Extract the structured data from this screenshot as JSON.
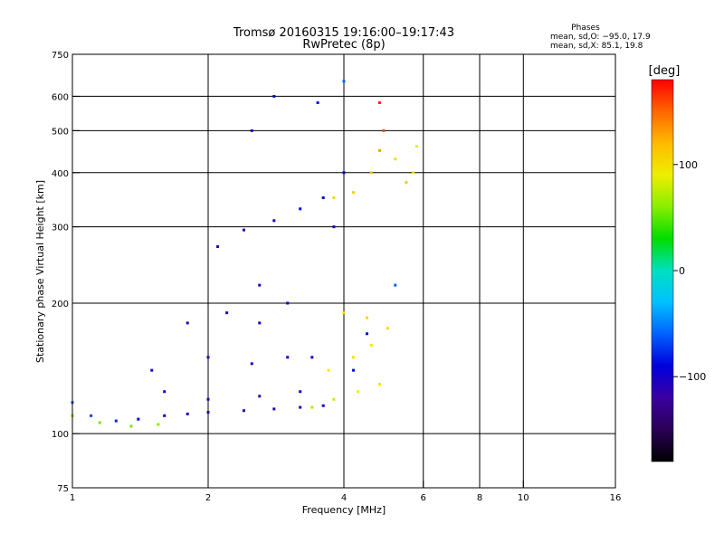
{
  "chart_data": {
    "type": "scatter",
    "title": "Tromsø 20160315 19:16:00–19:17:43",
    "subtitle": "RwPretec (8p)",
    "xlabel": "Frequency [MHz]",
    "ylabel": "Stationary phase Virtual Height [km]",
    "x_scale": "log",
    "y_scale": "log",
    "xlim": [
      1,
      16
    ],
    "ylim": [
      75,
      750
    ],
    "x_ticks": [
      1,
      2,
      4,
      6,
      8,
      10,
      16
    ],
    "x_tick_labels": [
      "1",
      "2",
      "4",
      "6",
      "8",
      "10",
      "16"
    ],
    "y_ticks": [
      75,
      100,
      200,
      300,
      400,
      500,
      600,
      750
    ],
    "y_tick_labels": [
      "75",
      "100",
      "200",
      "300",
      "400",
      "500",
      "600",
      "750"
    ],
    "grid_x": [
      2,
      4,
      6,
      8,
      10
    ],
    "grid_y": [
      100,
      200,
      300,
      400,
      500,
      600
    ],
    "grid": true,
    "stats": {
      "heading": "Phases",
      "lines": [
        "mean, sd,O: −95.0, 17.9",
        "mean, sd,X:  85.1, 19.8"
      ]
    },
    "colorbar": {
      "label": "[deg]",
      "range": [
        -180,
        180
      ],
      "ticks": [
        100,
        0,
        -100
      ],
      "tick_labels": [
        "100",
        "0",
        "−100"
      ]
    },
    "series": [
      {
        "mode": "O",
        "points": [
          [
            1.0,
            118,
            -60
          ],
          [
            1.1,
            110,
            -70
          ],
          [
            1.25,
            107,
            -80
          ],
          [
            1.4,
            108,
            -90
          ],
          [
            1.6,
            110,
            -100
          ],
          [
            1.8,
            111,
            -105
          ],
          [
            2.0,
            112,
            -110
          ],
          [
            2.4,
            113,
            -115
          ],
          [
            2.8,
            114,
            -110
          ],
          [
            3.2,
            115,
            -100
          ],
          [
            3.6,
            116,
            -90
          ],
          [
            1.6,
            125,
            -100
          ],
          [
            2.0,
            120,
            -110
          ],
          [
            2.6,
            122,
            -105
          ],
          [
            3.2,
            125,
            -100
          ],
          [
            1.5,
            140,
            -105
          ],
          [
            2.0,
            150,
            -110
          ],
          [
            2.5,
            145,
            -105
          ],
          [
            3.0,
            150,
            -95
          ],
          [
            1.8,
            180,
            -110
          ],
          [
            2.2,
            190,
            -105
          ],
          [
            2.6,
            180,
            -100
          ],
          [
            3.0,
            200,
            -95
          ],
          [
            2.4,
            295,
            -110
          ],
          [
            2.8,
            310,
            -100
          ],
          [
            3.2,
            330,
            -95
          ],
          [
            3.6,
            350,
            -90
          ],
          [
            2.5,
            500,
            -100
          ],
          [
            2.8,
            600,
            -90
          ],
          [
            3.5,
            580,
            -85
          ],
          [
            4.0,
            650,
            -60
          ],
          [
            4.0,
            400,
            -90
          ],
          [
            3.8,
            300,
            -105
          ],
          [
            2.6,
            220,
            -100
          ],
          [
            2.1,
            270,
            -110
          ],
          [
            3.4,
            150,
            -95
          ],
          [
            4.2,
            140,
            -90
          ],
          [
            4.5,
            170,
            -85
          ],
          [
            5.2,
            220,
            -60
          ]
        ]
      },
      {
        "mode": "X",
        "points": [
          [
            1.0,
            110,
            60
          ],
          [
            1.15,
            106,
            55
          ],
          [
            1.35,
            104,
            55
          ],
          [
            1.55,
            105,
            60
          ],
          [
            3.4,
            115,
            70
          ],
          [
            3.8,
            120,
            80
          ],
          [
            4.3,
            125,
            90
          ],
          [
            4.8,
            130,
            95
          ],
          [
            3.7,
            140,
            90
          ],
          [
            4.2,
            150,
            95
          ],
          [
            4.6,
            160,
            95
          ],
          [
            5.0,
            175,
            100
          ],
          [
            4.0,
            190,
            100
          ],
          [
            4.5,
            185,
            105
          ],
          [
            3.8,
            350,
            100
          ],
          [
            4.2,
            360,
            110
          ],
          [
            4.6,
            400,
            115
          ],
          [
            4.8,
            450,
            130
          ],
          [
            4.9,
            500,
            160
          ],
          [
            4.8,
            580,
            170
          ],
          [
            5.5,
            380,
            110
          ],
          [
            5.7,
            400,
            95
          ],
          [
            5.2,
            430,
            100
          ],
          [
            5.8,
            460,
            90
          ]
        ]
      }
    ]
  },
  "colors": {
    "frame": "#000000",
    "background": "#ffffff",
    "colormap": [
      "#000000",
      "#2a0055",
      "#3b00a0",
      "#0000dd",
      "#0060ff",
      "#00c0ff",
      "#00e0c0",
      "#00dd00",
      "#88ee00",
      "#eeee00",
      "#ffbb00",
      "#ff6600",
      "#ff0000"
    ]
  }
}
